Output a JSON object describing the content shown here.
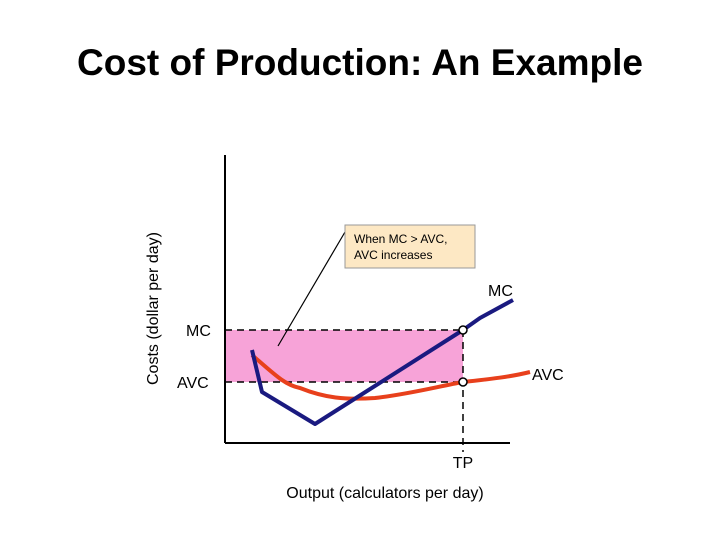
{
  "title": "Cost of Production: An Example",
  "y_axis_label": "Costs (dollar per day)",
  "x_axis_label": "Output (calculators per day)",
  "annotation": {
    "lines": [
      "When MC > AVC,",
      "AVC increases"
    ]
  },
  "labels": {
    "mc_curve": "MC",
    "avc_curve": "AVC",
    "mc_level": "MC",
    "avc_level": "AVC",
    "tp": "TP"
  }
}
